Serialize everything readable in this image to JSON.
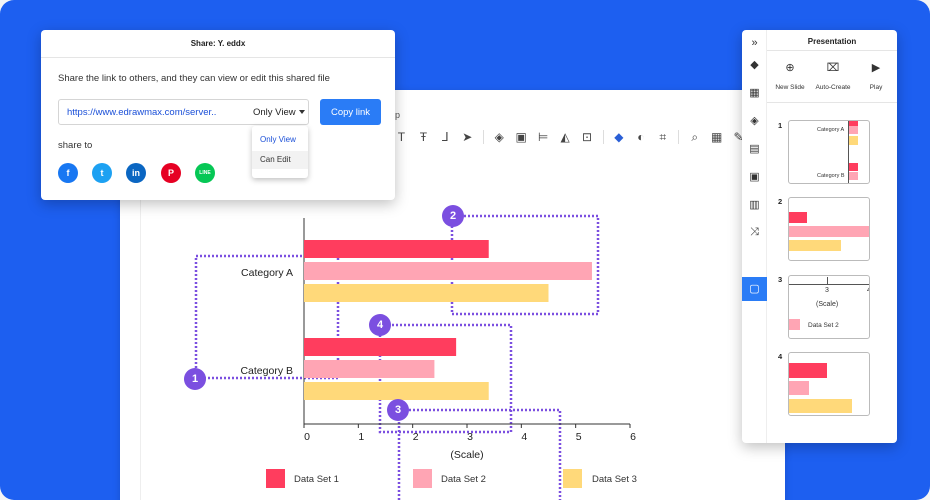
{
  "editor": {
    "menu_fragment": "lp",
    "toolbar_icons": [
      "text-tool-icon",
      "connector-icon",
      "pointer-icon",
      "layers-icon",
      "group-icon",
      "align-icon",
      "flip-icon",
      "crop-icon",
      "fill-icon",
      "line-color-icon",
      "opacity-icon",
      "zoom-icon",
      "table-icon",
      "pen-icon"
    ]
  },
  "share": {
    "title": "Share: Y. eddx",
    "message": "Share the link to others, and they can view or edit this shared file",
    "url": "https://www.edrawmax.com/server..",
    "permission": "Only View",
    "copy_label": "Copy link",
    "share_to": "share to",
    "social": [
      {
        "name": "facebook",
        "glyph": "f",
        "color": "#1877f2"
      },
      {
        "name": "twitter",
        "glyph": "t",
        "color": "#1da1f2"
      },
      {
        "name": "linkedin",
        "glyph": "in",
        "color": "#0a66c2"
      },
      {
        "name": "pinterest",
        "glyph": "P",
        "color": "#e60023"
      },
      {
        "name": "line",
        "glyph": "LINE",
        "color": "#06c755"
      }
    ],
    "menu": [
      {
        "label": "Only View",
        "color": "#1a4fd8"
      },
      {
        "label": "Can Edit",
        "color": "#333333"
      }
    ]
  },
  "presentation": {
    "title": "Presentation",
    "actions": [
      {
        "label": "New Slide",
        "icon": "plus-circle-icon",
        "glyph": "⊕"
      },
      {
        "label": "Auto-Create",
        "icon": "auto-create-icon",
        "glyph": "⌧"
      },
      {
        "label": "Play",
        "icon": "play-icon",
        "glyph": "▶"
      }
    ],
    "rail_icons": [
      "collapse-icon",
      "paint-bucket-icon",
      "grid-icon",
      "layers-icon",
      "document-icon",
      "image-icon",
      "building-icon",
      "shuffle-icon",
      "presentation-icon"
    ],
    "slides": [
      "1",
      "2",
      "3",
      "4"
    ],
    "thumb1_labels": [
      "Category A",
      "Category B"
    ],
    "thumb3": {
      "tick_3": "3",
      "tick_4": "4",
      "scale": "(Scale)",
      "legend": "Data Set 2"
    }
  },
  "chart_data": {
    "type": "bar",
    "orientation": "horizontal",
    "categories": [
      "Category A",
      "Category B"
    ],
    "series": [
      {
        "name": "Data Set 1",
        "values": [
          3.4,
          2.8
        ],
        "color": "#ff3d5e"
      },
      {
        "name": "Data Set 2",
        "values": [
          5.3,
          2.4
        ],
        "color": "#ffa5b4"
      },
      {
        "name": "Data Set 3",
        "values": [
          4.5,
          3.4
        ],
        "color": "#ffd97a"
      }
    ],
    "xlim": [
      0,
      6
    ],
    "xticks": [
      "0",
      "1",
      "2",
      "3",
      "4",
      "5",
      "6"
    ],
    "xlabel": "(Scale)",
    "legend": "bottom"
  },
  "callouts": [
    "1",
    "2",
    "3",
    "4"
  ],
  "colors": {
    "accent": "#1d5ff0",
    "button": "#2a7cf6",
    "callout": "#7b4fe0"
  }
}
